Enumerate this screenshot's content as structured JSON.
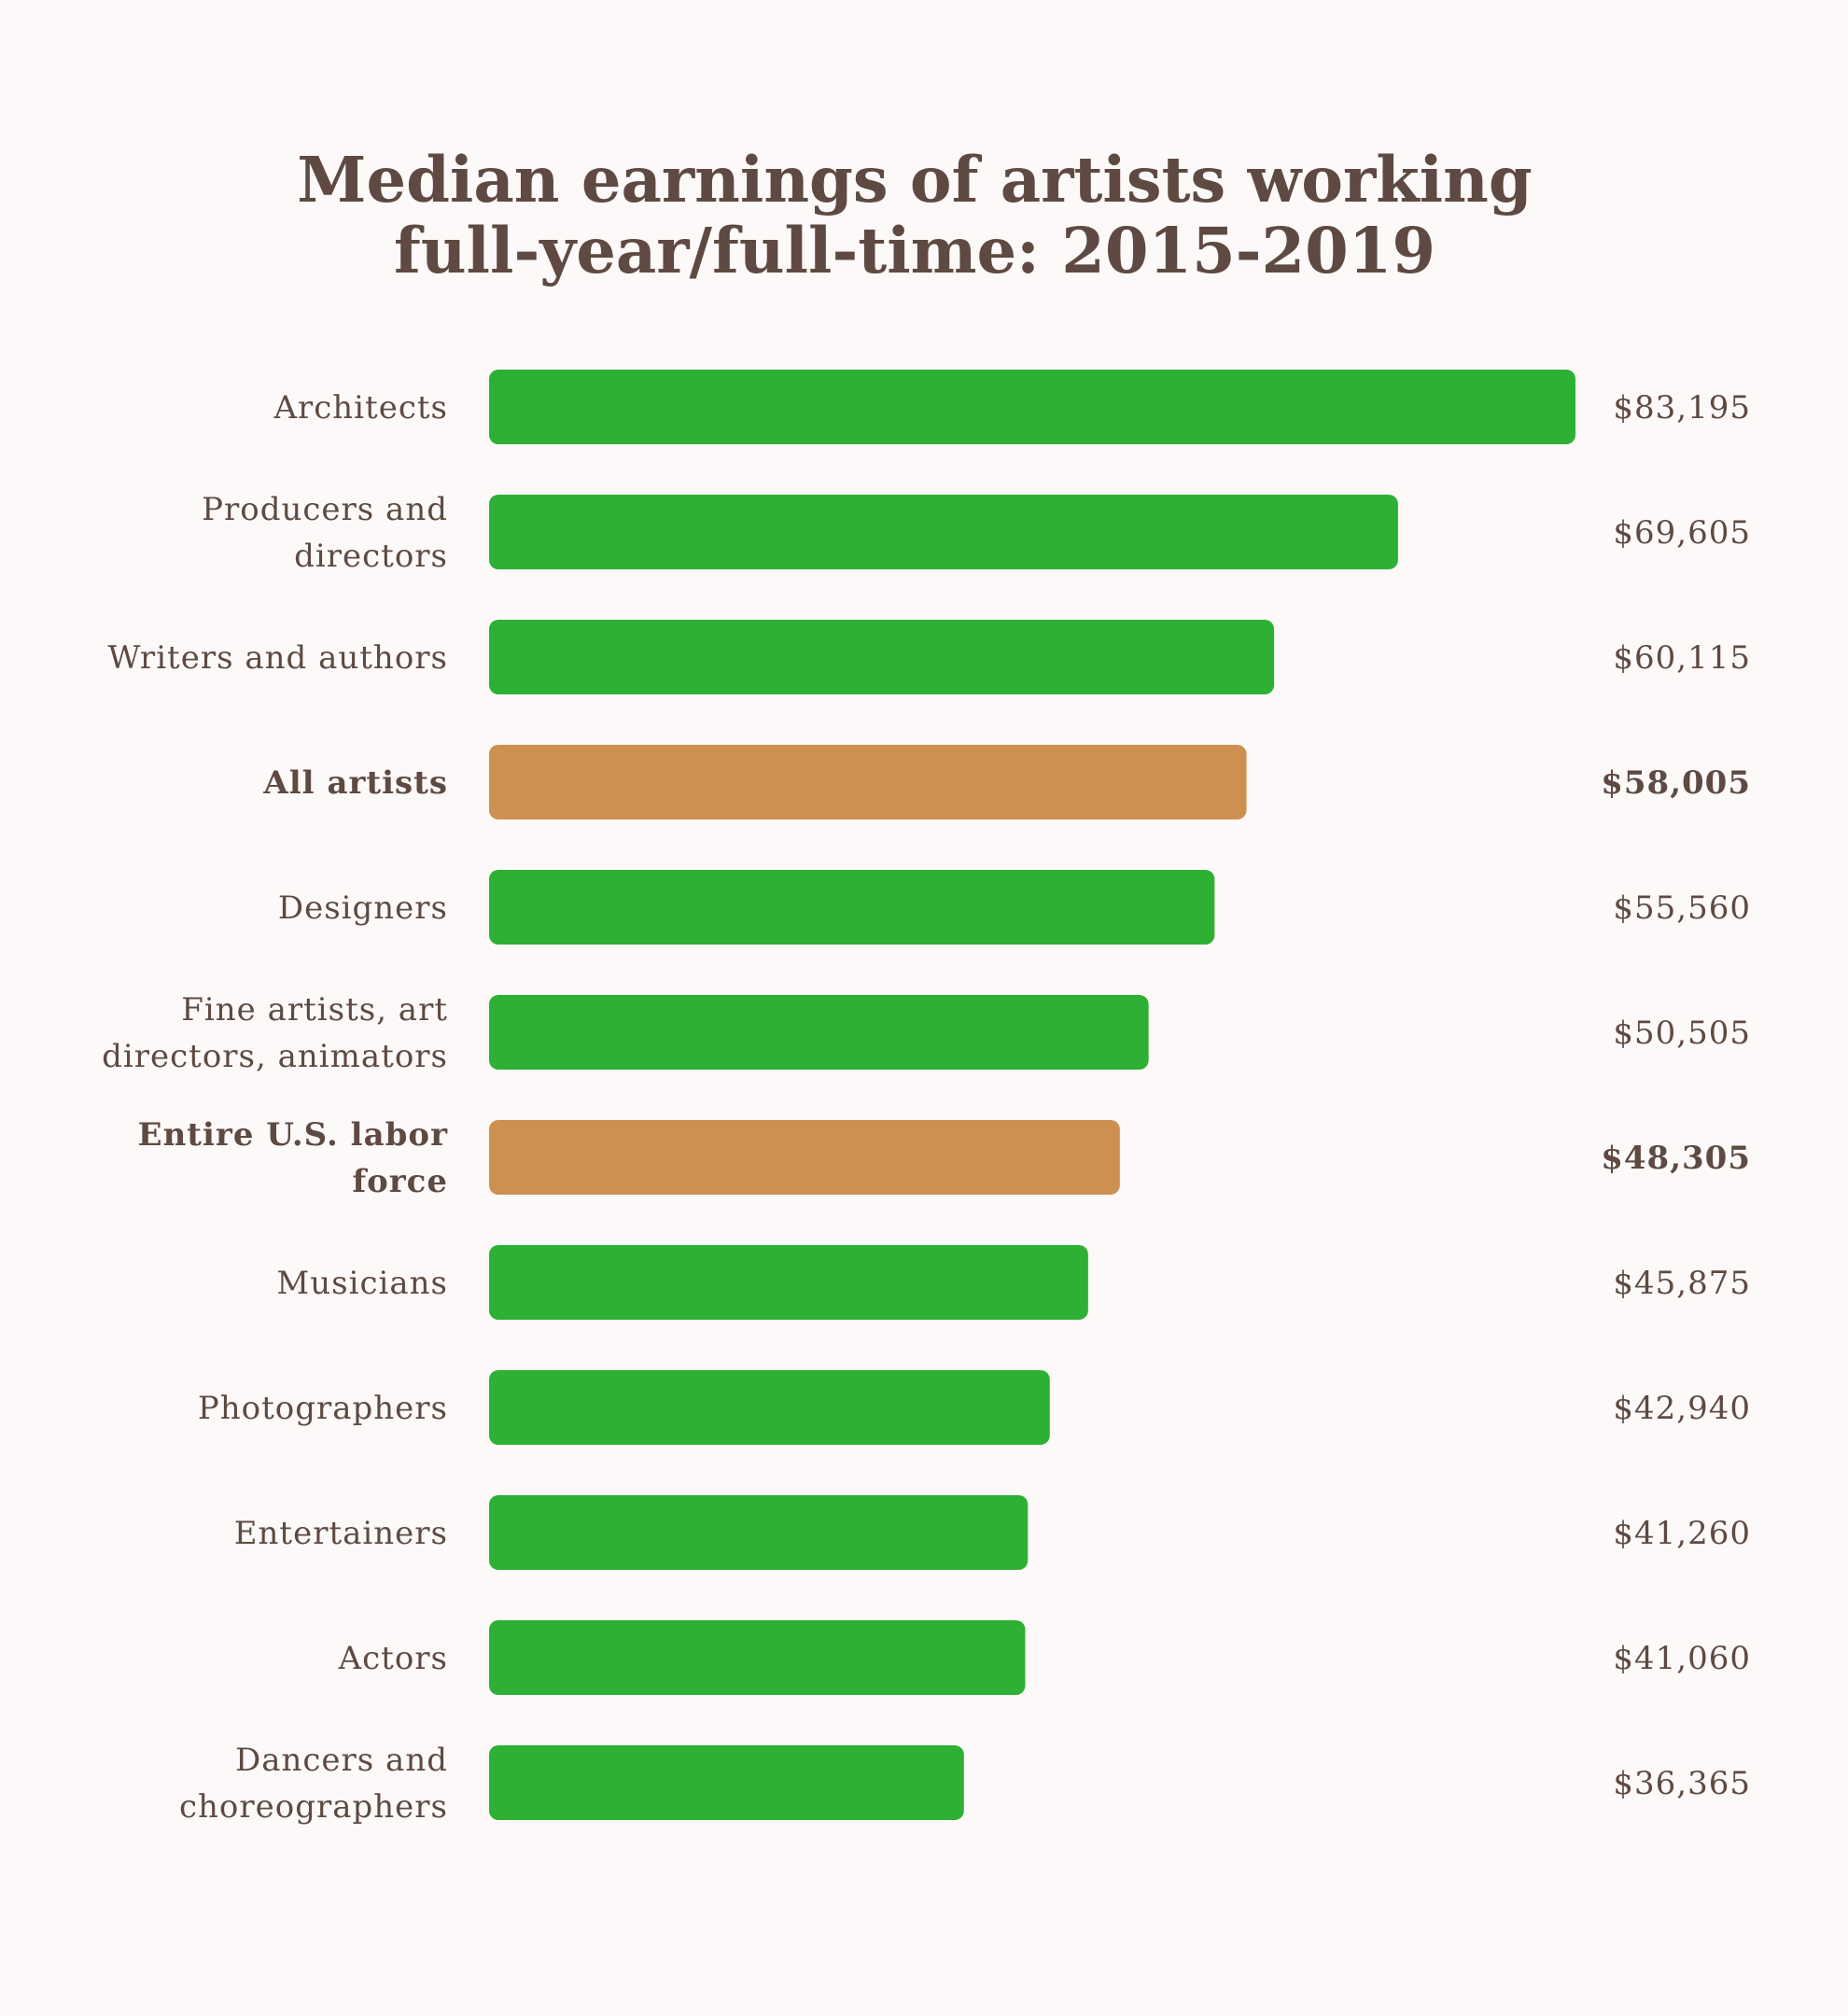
{
  "chart_data": {
    "type": "bar",
    "orientation": "horizontal",
    "title": "Median earnings of artists working full-year/full-time: 2015-2019",
    "categories": [
      "Architects",
      "Producers and directors",
      "Writers and authors",
      "All artists",
      "Designers",
      "Fine artists, art directors, animators",
      "Entire U.S. labor force",
      "Musicians",
      "Photographers",
      "Entertainers",
      "Actors",
      "Dancers and choreographers"
    ],
    "category_lines": [
      [
        "Architects"
      ],
      [
        "Producers and",
        "directors"
      ],
      [
        "Writers and authors"
      ],
      [
        "All artists"
      ],
      [
        "Designers"
      ],
      [
        "Fine artists, art",
        "directors, animators"
      ],
      [
        "Entire U.S. labor",
        "force"
      ],
      [
        "Musicians"
      ],
      [
        "Photographers"
      ],
      [
        "Entertainers"
      ],
      [
        "Actors"
      ],
      [
        "Dancers and",
        "choreographers"
      ]
    ],
    "values": [
      83195,
      69605,
      60115,
      58005,
      55560,
      50505,
      48305,
      45875,
      42940,
      41260,
      41060,
      36365
    ],
    "value_labels": [
      "$83,195",
      "$69,605",
      "$60,115",
      "$58,005",
      "$55,560",
      "$50,505",
      "$48,305",
      "$45,875",
      "$42,940",
      "$41,260",
      "$41,060",
      "$36,365"
    ],
    "highlighted": [
      false,
      false,
      false,
      true,
      false,
      false,
      true,
      false,
      false,
      false,
      false,
      false
    ],
    "colors": {
      "default_bar": "#2db034",
      "highlight_bar": "#cd9050",
      "text": "#5e4a42",
      "background": "#fcf9f8"
    },
    "xlim": [
      0,
      83195
    ],
    "grid": false,
    "legend": "none"
  }
}
